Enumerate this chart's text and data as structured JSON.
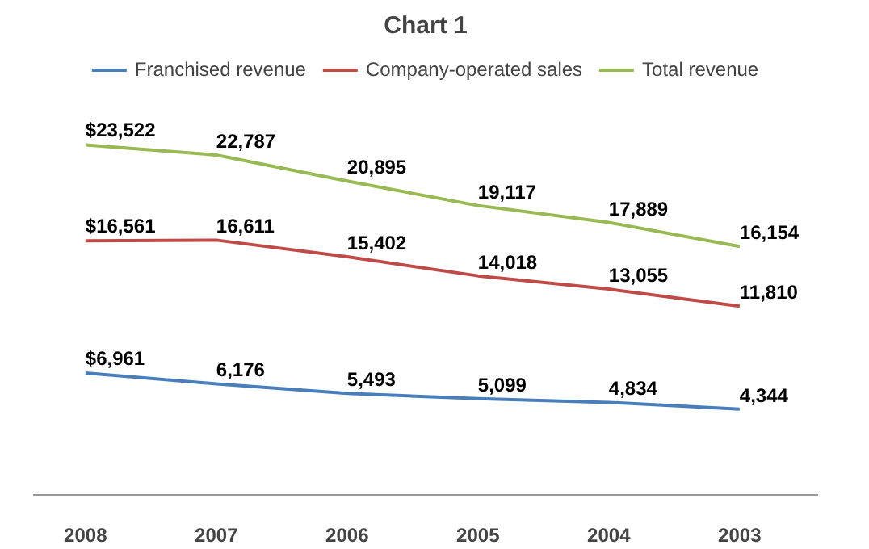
{
  "chart_data": {
    "type": "line",
    "title": "Chart 1",
    "categories": [
      "2008",
      "2007",
      "2006",
      "2005",
      "2004",
      "2003"
    ],
    "series": [
      {
        "name": "Franchised revenue",
        "color": "#4a7ebb",
        "values": [
          6961,
          6176,
          5493,
          5099,
          4834,
          4344
        ],
        "value_labels": [
          "$6,961",
          "6,176",
          "5,493",
          "5,099",
          "4,834",
          "4,344"
        ]
      },
      {
        "name": "Company-operated sales",
        "color": "#be4b48",
        "values": [
          16561,
          16611,
          15402,
          14018,
          13055,
          11810
        ],
        "value_labels": [
          "$16,561",
          "16,611",
          "15,402",
          "14,018",
          "13,055",
          "11,810"
        ]
      },
      {
        "name": "Total revenue",
        "color": "#98b954",
        "values": [
          23522,
          22787,
          20895,
          19117,
          17889,
          16154
        ],
        "value_labels": [
          "$23,522",
          "22,787",
          "20,895",
          "19,117",
          "17,889",
          "16,154"
        ]
      }
    ],
    "legend": "top",
    "line_style": "solid"
  }
}
